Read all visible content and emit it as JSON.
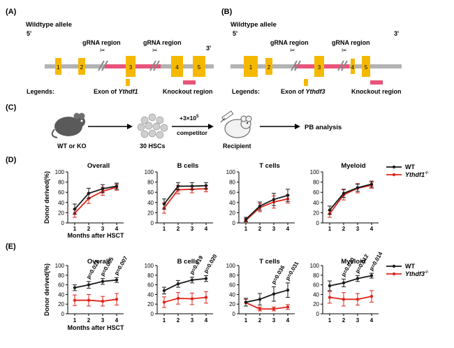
{
  "panels": {
    "A": {
      "label": "(A)",
      "allele_label": "Wildtype allele",
      "five_prime": "5'",
      "three_prime": "3'",
      "grna_labels": [
        "gRNA region",
        "gRNA region"
      ],
      "exons": [
        "1",
        "2",
        "3",
        "4",
        "5"
      ],
      "legends_label": "Legends:",
      "exon_legend_prefix": "Exon of ",
      "exon_legend_gene": "Ythdf1",
      "knockout_legend": "Knockout region"
    },
    "B": {
      "label": "(B)",
      "allele_label": "Wildtype allele",
      "five_prime": "5'",
      "three_prime": "3'",
      "grna_labels": [
        "gRNA region",
        "gRNA region"
      ],
      "exons": [
        "1",
        "2",
        "3",
        "4",
        "5"
      ],
      "legends_label": "Legends:",
      "exon_legend_prefix": "Exon of ",
      "exon_legend_gene": "Ythdf3",
      "knockout_legend": "Knockout region"
    },
    "C": {
      "label": "(C)",
      "donor_label": "WT or KO",
      "hsc_label": "30 HSCs",
      "transplant_label": "+3×10",
      "transplant_exp": "5",
      "competitor_label": "competitor",
      "recipient_label": "Recipient",
      "analysis_label": "PB analysis"
    },
    "D": {
      "label": "(D)"
    },
    "E": {
      "label": "(E)"
    }
  },
  "colors": {
    "wt": "#1a1a1a",
    "ko": "#e0241b",
    "exon": "#f5b800",
    "knockout": "#e8547a",
    "gene": "#b3b3b3"
  },
  "chart_data": [
    {
      "panel": "D",
      "type": "line",
      "ylabel": "Donor derived(%)",
      "xlabel": "Months after HSCT",
      "x": [
        1,
        2,
        3,
        4
      ],
      "ylim": [
        0,
        100
      ],
      "yticks": [
        0,
        20,
        40,
        60,
        80,
        100
      ],
      "legend": {
        "position": "top-right",
        "wt": "WT",
        "ko_gene": "Ythdf1",
        "ko_suffix": "-/-"
      },
      "subplots": [
        {
          "title": "Overall",
          "series": [
            {
              "name": "WT",
              "values": [
                27,
                58,
                67,
                72
              ],
              "err": [
                10,
                10,
                8,
                6
              ]
            },
            {
              "name": "Ythdf1-/-",
              "values": [
                19,
                48,
                62,
                70
              ],
              "err": [
                8,
                10,
                8,
                6
              ]
            }
          ]
        },
        {
          "title": "B cells",
          "series": [
            {
              "name": "WT",
              "values": [
                37,
                72,
                72,
                73
              ],
              "err": [
                10,
                7,
                7,
                6
              ]
            },
            {
              "name": "Ythdf1-/-",
              "values": [
                29,
                65,
                66,
                67
              ],
              "err": [
                10,
                8,
                7,
                6
              ]
            }
          ]
        },
        {
          "title": "T cells",
          "series": [
            {
              "name": "WT",
              "values": [
                7,
                33,
                46,
                54
              ],
              "err": [
                4,
                8,
                12,
                12
              ]
            },
            {
              "name": "Ythdf1-/-",
              "values": [
                5,
                30,
                41,
                47
              ],
              "err": [
                3,
                8,
                12,
                8
              ]
            }
          ]
        },
        {
          "title": "Myeloid",
          "series": [
            {
              "name": "WT",
              "values": [
                25,
                58,
                69,
                76
              ],
              "err": [
                8,
                8,
                7,
                6
              ]
            },
            {
              "name": "Ythdf1-/-",
              "values": [
                18,
                55,
                68,
                74
              ],
              "err": [
                7,
                10,
                9,
                6
              ]
            }
          ]
        }
      ]
    },
    {
      "panel": "E",
      "type": "line",
      "ylabel": "Donor derived(%)",
      "xlabel": "Months after HSCT",
      "x": [
        1,
        2,
        3,
        4
      ],
      "ylim": [
        0,
        100
      ],
      "yticks": [
        0,
        20,
        40,
        60,
        80,
        100
      ],
      "legend": {
        "position": "top-right",
        "wt": "WT",
        "ko_gene": "Ythdf3",
        "ko_suffix": "-/-"
      },
      "subplots": [
        {
          "title": "Overall",
          "pvalues": [
            "p=0.022",
            "p=0.005",
            "p=0.007"
          ],
          "series": [
            {
              "name": "WT",
              "values": [
                54,
                60,
                67,
                70
              ],
              "err": [
                6,
                7,
                6,
                5
              ]
            },
            {
              "name": "Ythdf3-/-",
              "values": [
                28,
                28,
                26,
                30
              ],
              "err": [
                11,
                12,
                10,
                12
              ]
            }
          ]
        },
        {
          "title": "B cells",
          "pvalues": [
            "p=0.019",
            "p=0.020"
          ],
          "series": [
            {
              "name": "WT",
              "values": [
                48,
                62,
                70,
                73
              ],
              "err": [
                7,
                7,
                6,
                6
              ]
            },
            {
              "name": "Ythdf3-/-",
              "values": [
                24,
                32,
                31,
                34
              ],
              "err": [
                11,
                12,
                12,
                12
              ]
            }
          ]
        },
        {
          "title": "T cells",
          "pvalues": [
            "p=0.036",
            "p=0.031"
          ],
          "series": [
            {
              "name": "WT",
              "values": [
                24,
                30,
                41,
                49
              ],
              "err": [
                8,
                12,
                15,
                15
              ]
            },
            {
              "name": "Ythdf3-/-",
              "values": [
                23,
                10,
                10,
                14
              ],
              "err": [
                7,
                4,
                4,
                5
              ]
            }
          ]
        },
        {
          "title": "Myeloid",
          "pvalues": [
            "p=0.020",
            "p=0.012",
            "p=0.014"
          ],
          "series": [
            {
              "name": "WT",
              "values": [
                58,
                64,
                73,
                79
              ],
              "err": [
                10,
                8,
                6,
                5
              ]
            },
            {
              "name": "Ythdf3-/-",
              "values": [
                34,
                30,
                30,
                36
              ],
              "err": [
                12,
                14,
                12,
                12
              ]
            }
          ]
        }
      ]
    }
  ]
}
